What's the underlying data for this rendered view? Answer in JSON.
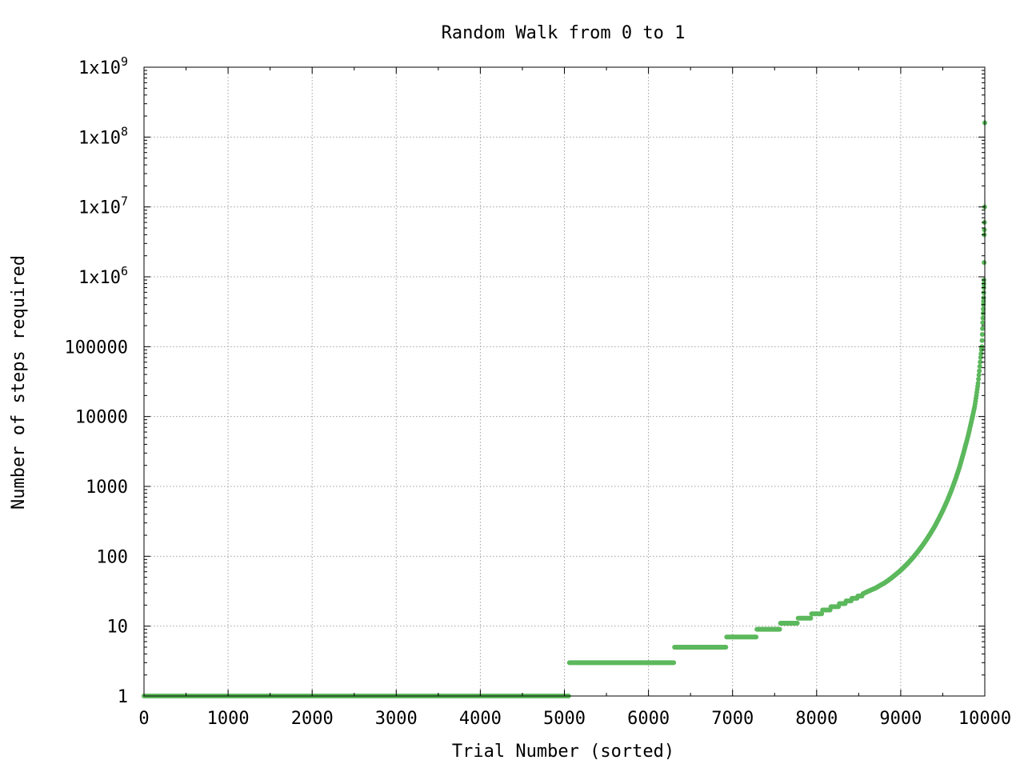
{
  "chart_data": {
    "type": "scatter",
    "title": "Random Walk from 0 to 1",
    "xlabel": "Trial Number (sorted)",
    "ylabel": "Number of steps required",
    "xlim": [
      0,
      10000
    ],
    "ylim": [
      1,
      1000000000
    ],
    "yscale": "log",
    "grid": true,
    "legend": "none",
    "marker_color": "#5cb85c",
    "x_ticks": [
      {
        "value": 0,
        "label": "0"
      },
      {
        "value": 1000,
        "label": "1000"
      },
      {
        "value": 2000,
        "label": "2000"
      },
      {
        "value": 3000,
        "label": "3000"
      },
      {
        "value": 4000,
        "label": "4000"
      },
      {
        "value": 5000,
        "label": "5000"
      },
      {
        "value": 6000,
        "label": "6000"
      },
      {
        "value": 7000,
        "label": "7000"
      },
      {
        "value": 8000,
        "label": "8000"
      },
      {
        "value": 9000,
        "label": "9000"
      },
      {
        "value": 10000,
        "label": "10000"
      }
    ],
    "y_ticks": [
      {
        "value": 1,
        "label": "1"
      },
      {
        "value": 10,
        "label": "10"
      },
      {
        "value": 100,
        "label": "100"
      },
      {
        "value": 1000,
        "label": "1000"
      },
      {
        "value": 10000,
        "label": "10000"
      },
      {
        "value": 100000,
        "label": "100000"
      },
      {
        "value": 1000000,
        "label": "1x10",
        "exp": "6"
      },
      {
        "value": 10000000,
        "label": "1x10",
        "exp": "7"
      },
      {
        "value": 100000000,
        "label": "1x10",
        "exp": "8"
      },
      {
        "value": 1000000000,
        "label": "1x10",
        "exp": "9"
      }
    ],
    "series": [
      {
        "segments": [
          {
            "x_start": 0,
            "x_end": 5050,
            "y": 1
          },
          {
            "x_start": 5060,
            "x_end": 6300,
            "y": 3
          },
          {
            "x_start": 6310,
            "x_end": 6920,
            "y": 5
          },
          {
            "x_start": 6930,
            "x_end": 7280,
            "y": 7
          },
          {
            "x_start": 7290,
            "x_end": 7560,
            "y": 9
          },
          {
            "x_start": 7570,
            "x_end": 7770,
            "y": 11
          },
          {
            "x_start": 7780,
            "x_end": 7930,
            "y": 13
          },
          {
            "x_start": 7940,
            "x_end": 8060,
            "y": 15
          },
          {
            "x_start": 8070,
            "x_end": 8160,
            "y": 17
          },
          {
            "x_start": 8170,
            "x_end": 8260,
            "y": 19
          },
          {
            "x_start": 8270,
            "x_end": 8340,
            "y": 21
          },
          {
            "x_start": 8350,
            "x_end": 8410,
            "y": 23
          },
          {
            "x_start": 8420,
            "x_end": 8480,
            "y": 25
          },
          {
            "x_start": 8490,
            "x_end": 8540,
            "y": 27
          }
        ],
        "curve": [
          [
            8550,
            29
          ],
          [
            8600,
            31
          ],
          [
            8650,
            33
          ],
          [
            8700,
            35
          ],
          [
            8750,
            38
          ],
          [
            8800,
            41
          ],
          [
            8850,
            45
          ],
          [
            8900,
            50
          ],
          [
            8950,
            56
          ],
          [
            9000,
            63
          ],
          [
            9050,
            72
          ],
          [
            9100,
            83
          ],
          [
            9150,
            97
          ],
          [
            9200,
            115
          ],
          [
            9250,
            138
          ],
          [
            9300,
            168
          ],
          [
            9350,
            208
          ],
          [
            9400,
            262
          ],
          [
            9450,
            340
          ],
          [
            9500,
            450
          ],
          [
            9550,
            610
          ],
          [
            9600,
            860
          ],
          [
            9650,
            1250
          ],
          [
            9700,
            1900
          ],
          [
            9750,
            3100
          ],
          [
            9800,
            5200
          ],
          [
            9850,
            9500
          ],
          [
            9880,
            14000
          ],
          [
            9900,
            20000
          ],
          [
            9920,
            30000
          ],
          [
            9935,
            45000
          ],
          [
            9950,
            70000
          ],
          [
            9960,
            90000
          ],
          [
            9965,
            100000
          ],
          [
            9970,
            150000
          ],
          [
            9975,
            220000
          ],
          [
            9980,
            300000
          ],
          [
            9983,
            400000
          ],
          [
            9986,
            500000
          ],
          [
            9988,
            700000
          ],
          [
            9990,
            900000
          ],
          [
            9992,
            1600000
          ],
          [
            9994,
            4000000
          ],
          [
            9995,
            4700000
          ],
          [
            9996,
            6000000
          ],
          [
            9998,
            10000000
          ],
          [
            10000,
            160000000
          ]
        ]
      }
    ]
  }
}
